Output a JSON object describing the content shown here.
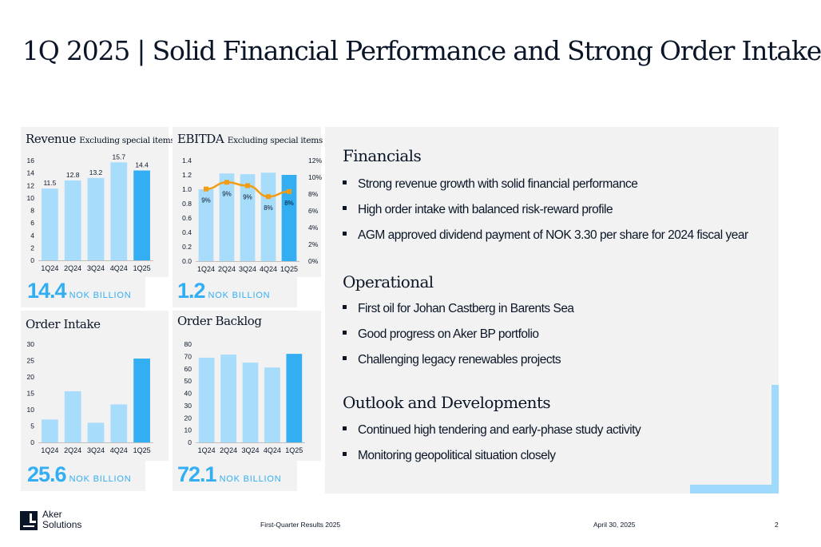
{
  "title": "1Q 2025 | Solid Financial Performance and Strong Order Intake",
  "colors": {
    "bar": "#a8dcfb",
    "bar_highlight": "#33aef2",
    "line": "#f39c12",
    "big_number": "#33aef2",
    "panel_bg": "#f2f2f2"
  },
  "panels": {
    "revenue": {
      "title": "Revenue",
      "subtitle": "Excluding special items",
      "big_value": "14.4",
      "big_unit": "NOK BILLION"
    },
    "ebitda": {
      "title": "EBITDA",
      "subtitle": "Excluding special items",
      "big_value": "1.2",
      "big_unit": "NOK BILLION"
    },
    "order_intake": {
      "title": "Order Intake",
      "subtitle": "",
      "big_value": "25.6",
      "big_unit": "NOK BILLION"
    },
    "order_backlog": {
      "title": "Order Backlog",
      "subtitle": "",
      "big_value": "72.1",
      "big_unit": "NOK BILLION"
    }
  },
  "chart_data": [
    {
      "id": "revenue",
      "type": "bar",
      "title": "Revenue Excluding special items",
      "categories": [
        "1Q24",
        "2Q24",
        "3Q24",
        "4Q24",
        "1Q25"
      ],
      "values": [
        11.5,
        12.8,
        13.2,
        15.7,
        14.4
      ],
      "data_labels": [
        "11.5",
        "12.8",
        "13.2",
        "15.7",
        "14.4"
      ],
      "highlight_index": 4,
      "ylim": [
        0,
        16
      ],
      "yticks": [
        0,
        2,
        4,
        6,
        8,
        10,
        12,
        14,
        16
      ],
      "grid": false
    },
    {
      "id": "ebitda",
      "type": "bar+line",
      "title": "EBITDA Excluding special items",
      "categories": [
        "1Q24",
        "2Q24",
        "3Q24",
        "4Q24",
        "1Q25"
      ],
      "values": [
        1.0,
        1.22,
        1.21,
        1.23,
        1.2
      ],
      "highlight_index": 4,
      "ylim": [
        0,
        1.4
      ],
      "yticks": [
        "0.0",
        "0.2",
        "0.4",
        "0.6",
        "0.8",
        "1.0",
        "1.2",
        "1.4"
      ],
      "margin_values": [
        8.6,
        9.4,
        9.0,
        7.7,
        8.3
      ],
      "margin_labels": [
        "9%",
        "9%",
        "9%",
        "8%",
        "8%"
      ],
      "y2lim": [
        0,
        12
      ],
      "y2ticks": [
        "0%",
        "2%",
        "4%",
        "6%",
        "8%",
        "10%",
        "12%"
      ],
      "grid": false
    },
    {
      "id": "order_intake",
      "type": "bar",
      "title": "Order Intake",
      "categories": [
        "1Q24",
        "2Q24",
        "3Q24",
        "4Q24",
        "1Q25"
      ],
      "values": [
        7.0,
        15.6,
        6.0,
        11.6,
        25.6
      ],
      "highlight_index": 4,
      "ylim": [
        0,
        30
      ],
      "yticks": [
        0,
        5,
        10,
        15,
        20,
        25,
        30
      ],
      "grid": false
    },
    {
      "id": "order_backlog",
      "type": "bar",
      "title": "Order Backlog",
      "categories": [
        "1Q24",
        "2Q24",
        "3Q24",
        "4Q24",
        "1Q25"
      ],
      "values": [
        69,
        71.5,
        65,
        61,
        72.1
      ],
      "highlight_index": 4,
      "ylim": [
        0,
        80
      ],
      "yticks": [
        0,
        10,
        20,
        30,
        40,
        50,
        60,
        70,
        80
      ],
      "grid": false
    }
  ],
  "sections": [
    {
      "title": "Financials",
      "bullets": [
        "Strong revenue growth with solid financial performance",
        "High order intake with balanced risk-reward profile",
        "AGM approved dividend payment of NOK 3.30 per share for 2024 fiscal year"
      ]
    },
    {
      "title": "Operational",
      "bullets": [
        "First oil for Johan Castberg in Barents Sea",
        "Good progress on Aker BP portfolio",
        "Challenging legacy renewables projects"
      ]
    },
    {
      "title": "Outlook and Developments",
      "bullets": [
        "Continued high tendering and early-phase study activity",
        "Monitoring geopolitical situation closely"
      ]
    }
  ],
  "footer": {
    "logo_line1": "Aker",
    "logo_line2": "Solutions",
    "center": "First-Quarter Results 2025",
    "date": "April 30, 2025",
    "page": "2"
  }
}
